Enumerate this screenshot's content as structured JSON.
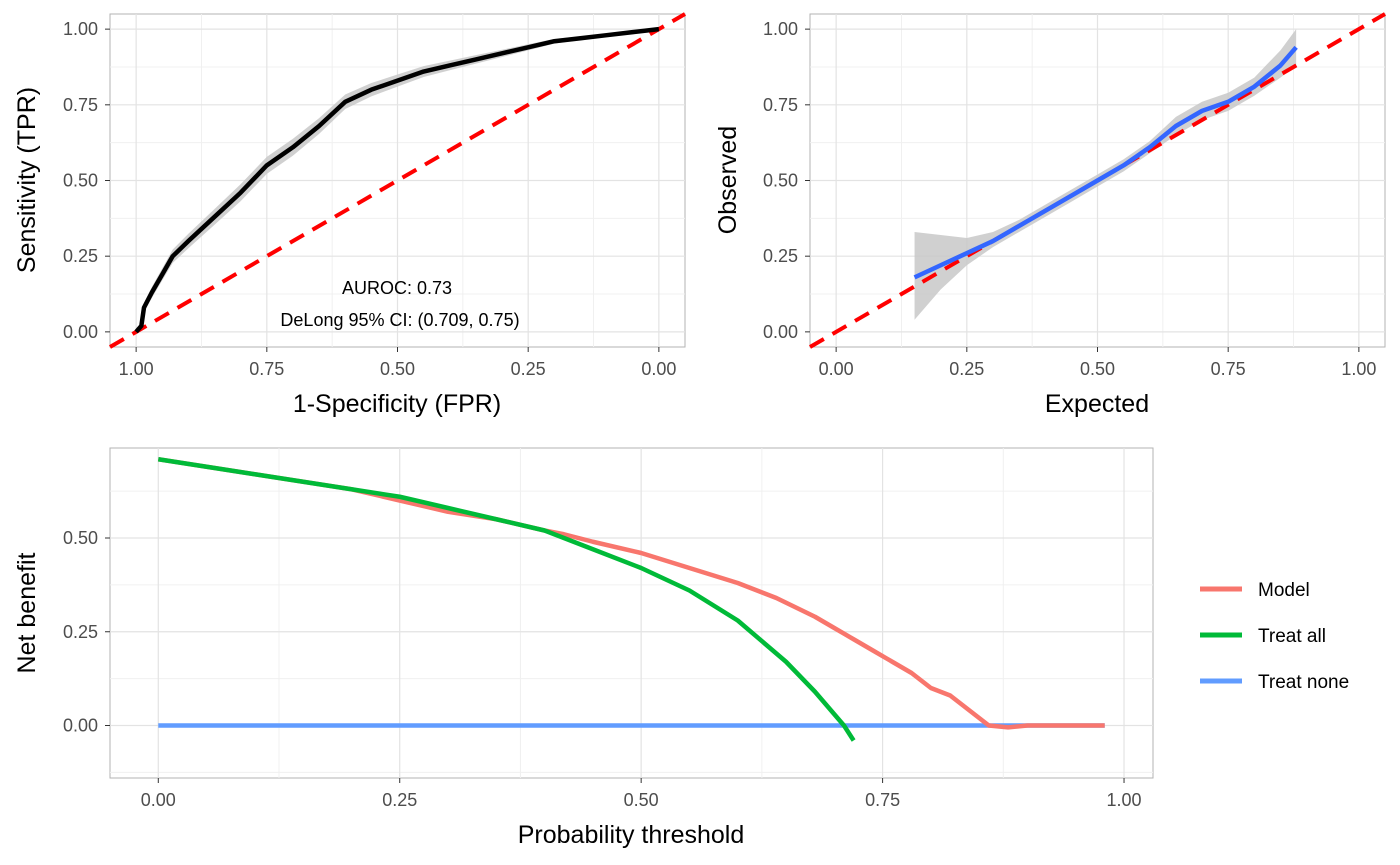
{
  "chart_data": [
    {
      "id": "roc",
      "type": "line",
      "xlabel": "1-Specificity (FPR)",
      "ylabel": "Sensitivity (TPR)",
      "xlim": [
        1.05,
        -0.05
      ],
      "ylim": [
        -0.05,
        1.05
      ],
      "x_reversed": true,
      "xticks": [
        1.0,
        0.75,
        0.5,
        0.25,
        0.0
      ],
      "xtick_labels": [
        "1.00",
        "0.75",
        "0.50",
        "0.25",
        "0.00"
      ],
      "yticks": [
        0.0,
        0.25,
        0.5,
        0.75,
        1.0
      ],
      "ytick_labels": [
        "0.00",
        "0.25",
        "0.50",
        "0.75",
        "1.00"
      ],
      "grid": true,
      "annotations": [
        "AUROC: 0.73",
        "DeLong 95% CI: (0.709, 0.75)"
      ],
      "colors": {
        "curve": "#000000",
        "band": "#c8c8c8",
        "reference": "#ff0000"
      },
      "series": [
        {
          "x": [
            1.0,
            0.99,
            0.985,
            0.97,
            0.95,
            0.93,
            0.9,
            0.85,
            0.8,
            0.75,
            0.7,
            0.65,
            0.6,
            0.55,
            0.5,
            0.45,
            0.4,
            0.35,
            0.3,
            0.25,
            0.2,
            0.15,
            0.1,
            0.05,
            0.0
          ],
          "y": [
            0.0,
            0.02,
            0.08,
            0.13,
            0.19,
            0.25,
            0.3,
            0.38,
            0.46,
            0.55,
            0.61,
            0.68,
            0.76,
            0.8,
            0.83,
            0.86,
            0.88,
            0.9,
            0.92,
            0.94,
            0.96,
            0.97,
            0.98,
            0.99,
            1.0
          ]
        }
      ],
      "band_half_width": [
        0.0,
        0.01,
        0.015,
        0.018,
        0.02,
        0.022,
        0.024,
        0.026,
        0.028,
        0.028,
        0.028,
        0.026,
        0.024,
        0.022,
        0.02,
        0.018,
        0.016,
        0.014,
        0.012,
        0.01,
        0.008,
        0.006,
        0.005,
        0.004,
        0.0
      ]
    },
    {
      "id": "calibration",
      "type": "line",
      "xlabel": "Expected",
      "ylabel": "Observed",
      "xlim": [
        -0.05,
        1.05
      ],
      "ylim": [
        -0.05,
        1.05
      ],
      "xticks": [
        0.0,
        0.25,
        0.5,
        0.75,
        1.0
      ],
      "xtick_labels": [
        "0.00",
        "0.25",
        "0.50",
        "0.75",
        "1.00"
      ],
      "yticks": [
        0.0,
        0.25,
        0.5,
        0.75,
        1.0
      ],
      "ytick_labels": [
        "0.00",
        "0.25",
        "0.50",
        "0.75",
        "1.00"
      ],
      "grid": true,
      "colors": {
        "curve": "#3366ff",
        "band": "#c8c8c8",
        "reference": "#ff0000"
      },
      "series": [
        {
          "x": [
            0.15,
            0.2,
            0.25,
            0.3,
            0.35,
            0.4,
            0.45,
            0.5,
            0.55,
            0.6,
            0.65,
            0.7,
            0.75,
            0.8,
            0.85,
            0.88
          ],
          "y": [
            0.18,
            0.22,
            0.26,
            0.3,
            0.35,
            0.4,
            0.45,
            0.5,
            0.55,
            0.61,
            0.68,
            0.73,
            0.76,
            0.81,
            0.88,
            0.94
          ]
        }
      ],
      "band_lower": [
        0.04,
        0.14,
        0.22,
        0.28,
        0.33,
        0.38,
        0.43,
        0.48,
        0.53,
        0.59,
        0.65,
        0.7,
        0.73,
        0.78,
        0.84,
        0.88
      ],
      "band_upper": [
        0.33,
        0.32,
        0.31,
        0.33,
        0.37,
        0.42,
        0.47,
        0.52,
        0.57,
        0.63,
        0.71,
        0.76,
        0.79,
        0.84,
        0.93,
        1.0
      ]
    },
    {
      "id": "decision-curve",
      "type": "line",
      "xlabel": "Probability threshold",
      "ylabel": "Net benefit",
      "xlim": [
        -0.05,
        1.03
      ],
      "ylim": [
        -0.14,
        0.74
      ],
      "xticks": [
        0.0,
        0.25,
        0.5,
        0.75,
        1.0
      ],
      "xtick_labels": [
        "0.00",
        "0.25",
        "0.50",
        "0.75",
        "1.00"
      ],
      "yticks": [
        0.0,
        0.25,
        0.5
      ],
      "ytick_labels": [
        "0.00",
        "0.25",
        "0.50"
      ],
      "grid": true,
      "legend": "right",
      "series": [
        {
          "name": "Model",
          "color": "#f8766d",
          "x": [
            0.0,
            0.05,
            0.1,
            0.15,
            0.2,
            0.25,
            0.3,
            0.35,
            0.4,
            0.42,
            0.45,
            0.5,
            0.55,
            0.6,
            0.64,
            0.68,
            0.7,
            0.72,
            0.74,
            0.76,
            0.78,
            0.8,
            0.82,
            0.84,
            0.86,
            0.88,
            0.9,
            0.95,
            0.98
          ],
          "y": [
            0.71,
            0.69,
            0.67,
            0.65,
            0.63,
            0.6,
            0.57,
            0.55,
            0.52,
            0.51,
            0.49,
            0.46,
            0.42,
            0.38,
            0.34,
            0.29,
            0.26,
            0.23,
            0.2,
            0.17,
            0.14,
            0.1,
            0.08,
            0.04,
            0.0,
            -0.005,
            0.0,
            0.0,
            0.0
          ]
        },
        {
          "name": "Treat all",
          "color": "#00ba38",
          "x": [
            0.0,
            0.05,
            0.1,
            0.15,
            0.2,
            0.25,
            0.3,
            0.35,
            0.4,
            0.45,
            0.5,
            0.55,
            0.6,
            0.65,
            0.68,
            0.7,
            0.71,
            0.72
          ],
          "y": [
            0.71,
            0.69,
            0.67,
            0.65,
            0.63,
            0.61,
            0.58,
            0.55,
            0.52,
            0.47,
            0.42,
            0.36,
            0.28,
            0.17,
            0.09,
            0.03,
            0.0,
            -0.04
          ]
        },
        {
          "name": "Treat none",
          "color": "#619cff",
          "x": [
            0.0,
            0.98
          ],
          "y": [
            0.0,
            0.0
          ]
        }
      ]
    }
  ]
}
